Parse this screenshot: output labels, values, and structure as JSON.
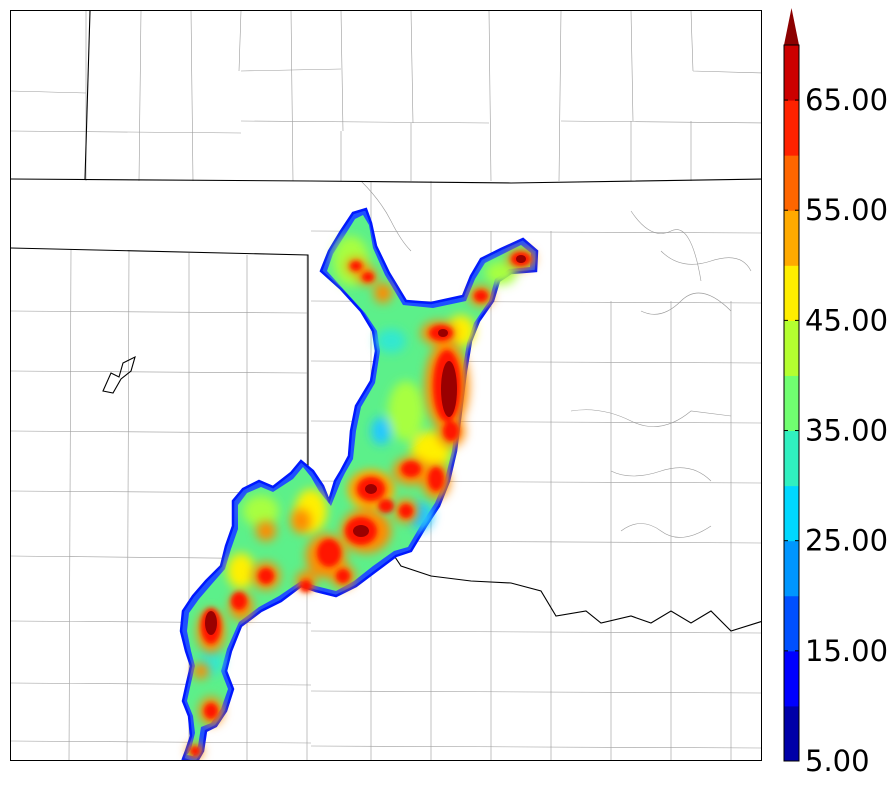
{
  "colorbar": {
    "tick_labels": [
      "5.00",
      "15.00",
      "25.00",
      "35.00",
      "45.00",
      "55.00",
      "65.00"
    ],
    "min": 5,
    "max": 70,
    "step": 5,
    "extend": "max",
    "band_colors": [
      "#0000a8",
      "#0000ff",
      "#0050ff",
      "#0096ff",
      "#00d8ff",
      "#30f0c0",
      "#70ff70",
      "#b4ff30",
      "#ffee00",
      "#ffaa00",
      "#ff6600",
      "#ff2200",
      "#cc0000",
      "#8c0000"
    ]
  }
}
